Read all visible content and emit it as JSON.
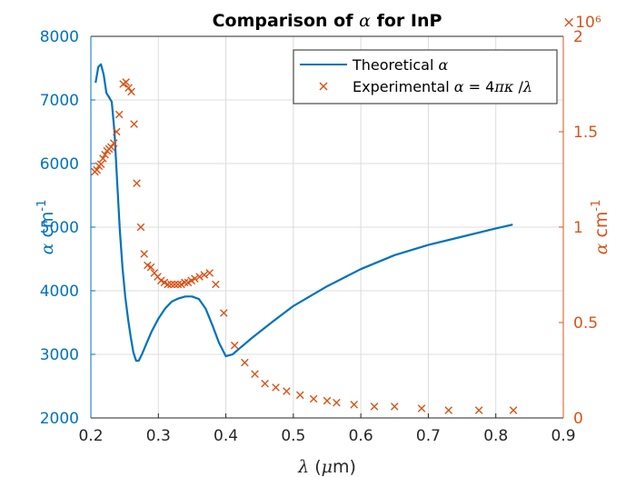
{
  "chart_data": {
    "type": "line",
    "title": "Comparison of α for InP",
    "xlabel": "λ (μm)",
    "ylabel_left": "α  cm-1",
    "ylabel_right": "α  cm-1",
    "xlim": [
      0.2,
      0.9
    ],
    "ylim_left": [
      2000,
      8000
    ],
    "ylim_right": [
      0,
      2000000
    ],
    "x_ticks": [
      "0.2",
      "0.3",
      "0.4",
      "0.5",
      "0.6",
      "0.7",
      "0.8",
      "0.9"
    ],
    "y_left_ticks": [
      "2000",
      "3000",
      "4000",
      "5000",
      "6000",
      "7000",
      "8000"
    ],
    "y_right_ticks": [
      "0",
      "0.5",
      "1",
      "1.5",
      "2"
    ],
    "right_exponent": "×10⁶",
    "grid": true,
    "legend_position": "top-right",
    "colors": {
      "theoretical": "#0072BD",
      "experimental": "#D95319",
      "axis": "#262626",
      "grid": "#dcdcdc"
    },
    "series": [
      {
        "name": "Theoretical α",
        "axis": "left",
        "marker": "line",
        "x": [
          0.207,
          0.211,
          0.215,
          0.219,
          0.223,
          0.227,
          0.231,
          0.235,
          0.239,
          0.243,
          0.247,
          0.251,
          0.255,
          0.259,
          0.263,
          0.267,
          0.271,
          0.276,
          0.282,
          0.29,
          0.3,
          0.31,
          0.32,
          0.33,
          0.34,
          0.35,
          0.36,
          0.37,
          0.38,
          0.39,
          0.4,
          0.41,
          0.42,
          0.44,
          0.47,
          0.5,
          0.55,
          0.6,
          0.65,
          0.7,
          0.75,
          0.8,
          0.825
        ],
        "y": [
          7270,
          7520,
          7560,
          7400,
          7110,
          7040,
          6970,
          6500,
          5700,
          4950,
          4350,
          3900,
          3560,
          3280,
          3030,
          2900,
          2900,
          3010,
          3160,
          3360,
          3560,
          3720,
          3830,
          3880,
          3910,
          3910,
          3870,
          3720,
          3460,
          3180,
          2970,
          3000,
          3090,
          3270,
          3520,
          3760,
          4070,
          4340,
          4560,
          4720,
          4850,
          4980,
          5040
        ]
      },
      {
        "name": "Experimental α = 4πκ /λ",
        "axis": "right",
        "marker": "x",
        "x": [
          0.206,
          0.209,
          0.212,
          0.215,
          0.218,
          0.221,
          0.224,
          0.227,
          0.23,
          0.234,
          0.238,
          0.242,
          0.248,
          0.252,
          0.256,
          0.26,
          0.264,
          0.268,
          0.274,
          0.279,
          0.284,
          0.289,
          0.294,
          0.299,
          0.304,
          0.309,
          0.314,
          0.319,
          0.324,
          0.329,
          0.334,
          0.339,
          0.344,
          0.349,
          0.354,
          0.361,
          0.368,
          0.376,
          0.385,
          0.397,
          0.413,
          0.428,
          0.443,
          0.458,
          0.474,
          0.49,
          0.51,
          0.53,
          0.55,
          0.564,
          0.59,
          0.62,
          0.65,
          0.69,
          0.73,
          0.775,
          0.826
        ],
        "y": [
          1290000,
          1300000,
          1320000,
          1330000,
          1360000,
          1380000,
          1400000,
          1410000,
          1420000,
          1440000,
          1500000,
          1590000,
          1750000,
          1760000,
          1730000,
          1710000,
          1540000,
          1230000,
          1000000,
          860000,
          800000,
          790000,
          760000,
          740000,
          720000,
          710000,
          700000,
          700000,
          700000,
          700000,
          700000,
          710000,
          710000,
          720000,
          730000,
          740000,
          750000,
          760000,
          700000,
          550000,
          380000,
          290000,
          230000,
          180000,
          160000,
          140000,
          120000,
          100000,
          90000,
          80000,
          70000,
          60000,
          60000,
          50000,
          40000,
          40000,
          40000
        ]
      }
    ]
  }
}
